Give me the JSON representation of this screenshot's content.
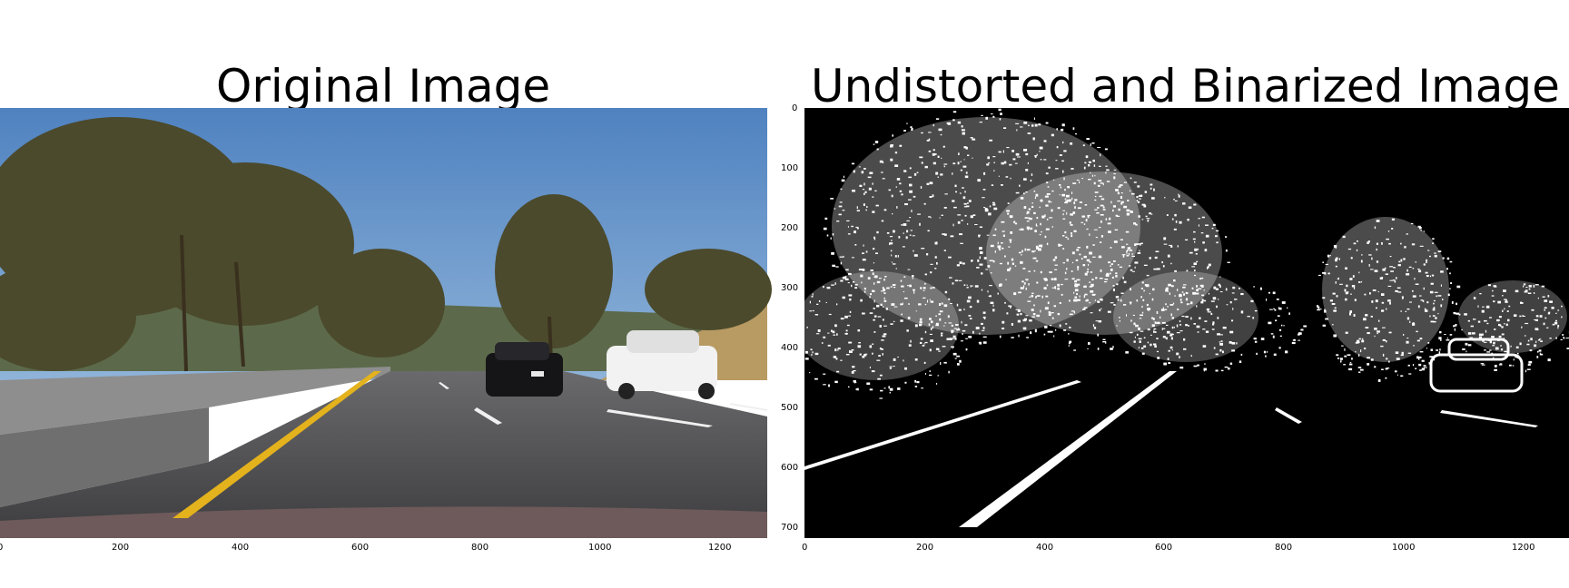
{
  "figure": {
    "left": {
      "title": "Original Image",
      "x_ticks": [
        "0",
        "200",
        "400",
        "600",
        "800",
        "1000",
        "1200"
      ],
      "image_description_colors": {
        "sky": "#5f8fc6",
        "road": "#4a4a4c",
        "lane_yellow": "#e3b21c",
        "lane_white": "#f4f4f4",
        "tree": "#4d4a2a"
      }
    },
    "right": {
      "title": "Undistorted and Binarized Image",
      "x_ticks": [
        "0",
        "200",
        "400",
        "600",
        "800",
        "1000",
        "1200"
      ],
      "y_ticks": [
        "0",
        "100",
        "200",
        "300",
        "400",
        "500",
        "600",
        "700"
      ],
      "colors": {
        "background": "#000000",
        "foreground": "#ffffff"
      }
    }
  }
}
